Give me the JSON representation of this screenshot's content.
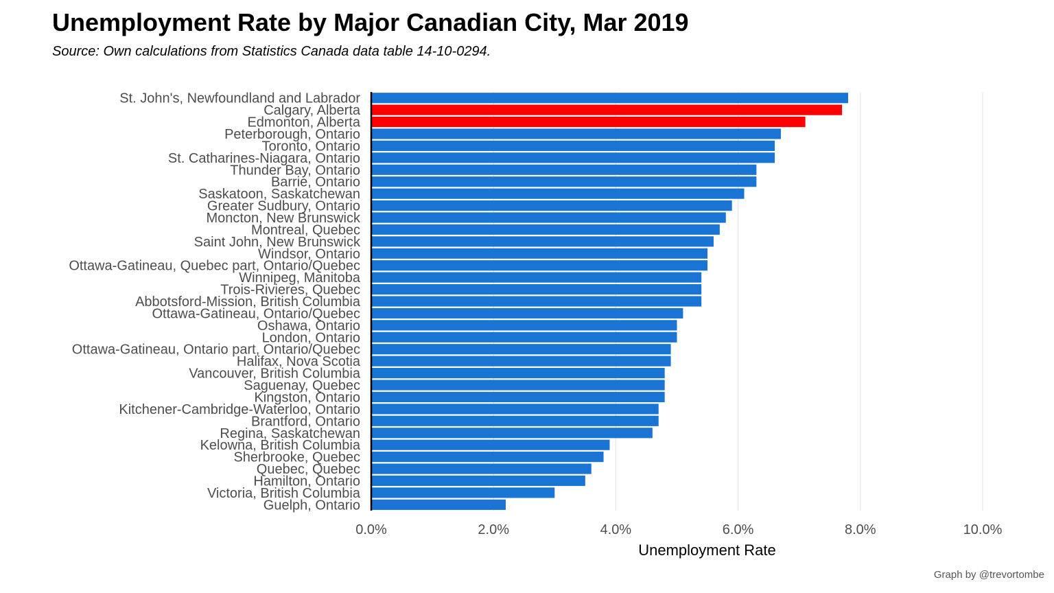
{
  "title": "Unemployment Rate by Major Canadian City, Mar 2019",
  "subtitle": "Source: Own calculations from Statistics Canada data table 14-10-0294.",
  "caption": "Graph by @trevortombe",
  "colors": {
    "default_bar": "#1a74d4",
    "highlight_bar": "#ff0000",
    "grid": "#e6e6e6",
    "axis": "#000000",
    "label": "#4d4d4d"
  },
  "chart_data": {
    "type": "bar",
    "orientation": "horizontal",
    "xlabel": "Unemployment Rate",
    "ylabel": "",
    "xlim": [
      0,
      10
    ],
    "ticks": [
      "0.0%",
      "2.0%",
      "4.0%",
      "6.0%",
      "8.0%",
      "10.0%"
    ],
    "tick_values": [
      0,
      2,
      4,
      6,
      8,
      10
    ],
    "grid": true,
    "categories": [
      "St. John's, Newfoundland and Labrador",
      "Calgary, Alberta",
      "Edmonton, Alberta",
      "Peterborough, Ontario",
      "Toronto, Ontario",
      "St. Catharines-Niagara, Ontario",
      "Thunder Bay, Ontario",
      "Barrie, Ontario",
      "Saskatoon, Saskatchewan",
      "Greater Sudbury, Ontario",
      "Moncton, New Brunswick",
      "Montreal, Quebec",
      "Saint John, New Brunswick",
      "Windsor, Ontario",
      "Ottawa-Gatineau, Quebec part, Ontario/Quebec",
      "Winnipeg, Manitoba",
      "Trois-Rivieres, Quebec",
      "Abbotsford-Mission, British Columbia",
      "Ottawa-Gatineau, Ontario/Quebec",
      "Oshawa, Ontario",
      "London, Ontario",
      "Ottawa-Gatineau, Ontario part, Ontario/Quebec",
      "Halifax, Nova Scotia",
      "Vancouver, British Columbia",
      "Saguenay, Quebec",
      "Kingston, Ontario",
      "Kitchener-Cambridge-Waterloo, Ontario",
      "Brantford, Ontario",
      "Regina, Saskatchewan",
      "Kelowna, British Columbia",
      "Sherbrooke, Quebec",
      "Quebec, Quebec",
      "Hamilton, Ontario",
      "Victoria, British Columbia",
      "Guelph, Ontario"
    ],
    "values": [
      7.8,
      7.7,
      7.1,
      6.7,
      6.6,
      6.6,
      6.3,
      6.3,
      6.1,
      5.9,
      5.8,
      5.7,
      5.6,
      5.5,
      5.5,
      5.4,
      5.4,
      5.4,
      5.1,
      5.0,
      5.0,
      4.9,
      4.9,
      4.8,
      4.8,
      4.8,
      4.7,
      4.7,
      4.6,
      3.9,
      3.8,
      3.6,
      3.5,
      3.0,
      2.2
    ],
    "highlighted": [
      "Calgary, Alberta",
      "Edmonton, Alberta"
    ]
  }
}
